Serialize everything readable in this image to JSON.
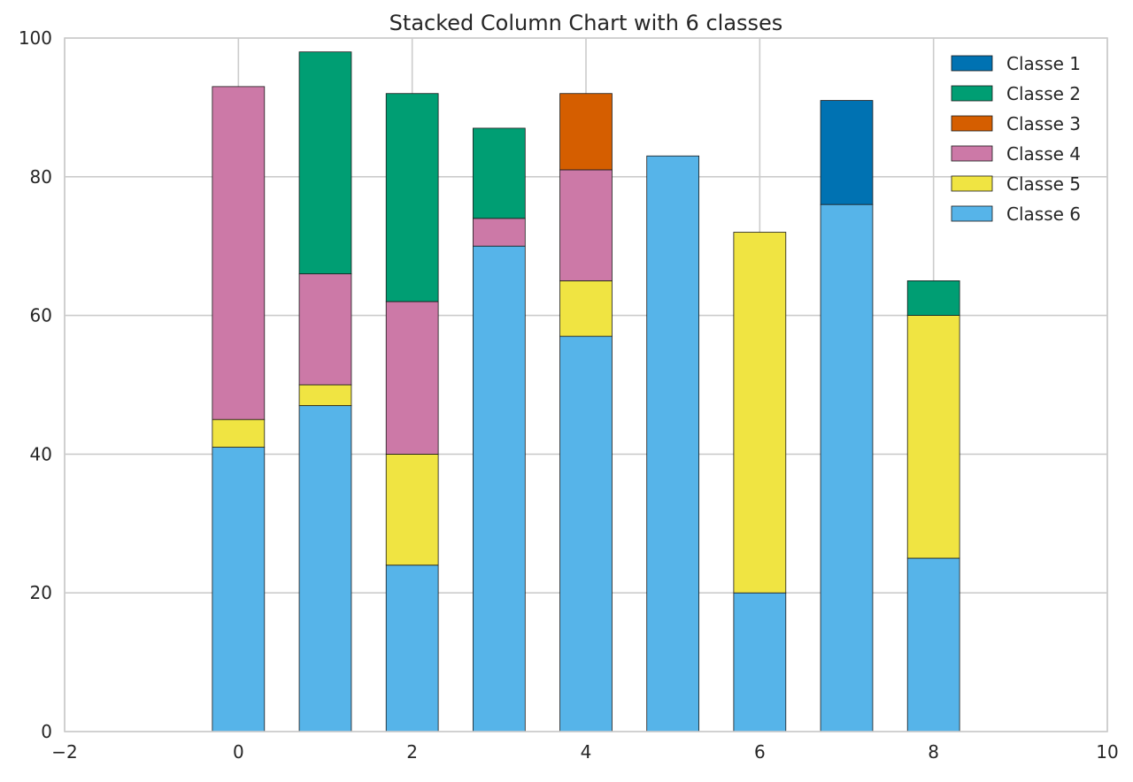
{
  "chart_data": {
    "type": "bar",
    "stacked": true,
    "title": "Stacked Column Chart with 6 classes",
    "xlabel": "",
    "ylabel": "",
    "xlim": [
      -2,
      10
    ],
    "ylim": [
      0,
      100
    ],
    "x_ticks": [
      -2,
      0,
      2,
      4,
      6,
      8,
      10
    ],
    "x_tick_labels": [
      "−2",
      "0",
      "2",
      "4",
      "6",
      "8",
      "10"
    ],
    "y_ticks": [
      0,
      20,
      40,
      60,
      80,
      100
    ],
    "y_tick_labels": [
      "0",
      "20",
      "40",
      "60",
      "80",
      "100"
    ],
    "grid": true,
    "legend_position": "top-right",
    "x": [
      0,
      1,
      2,
      3,
      4,
      5,
      6,
      7,
      8
    ],
    "bar_width": 0.6,
    "stack_order": [
      "Classe 6",
      "Classe 5",
      "Classe 4",
      "Classe 3",
      "Classe 2",
      "Classe 1"
    ],
    "series": [
      {
        "name": "Classe 1",
        "color": "#0072b2",
        "values": [
          0,
          0,
          0,
          0,
          0,
          0,
          0,
          15,
          0
        ]
      },
      {
        "name": "Classe 2",
        "color": "#009e73",
        "values": [
          0,
          32,
          30,
          13,
          0,
          0,
          0,
          0,
          5
        ]
      },
      {
        "name": "Classe 3",
        "color": "#d55e00",
        "values": [
          0,
          0,
          0,
          0,
          11,
          0,
          0,
          0,
          0
        ]
      },
      {
        "name": "Classe 4",
        "color": "#cc79a7",
        "values": [
          48,
          16,
          22,
          4,
          16,
          0,
          0,
          0,
          0
        ]
      },
      {
        "name": "Classe 5",
        "color": "#f0e442",
        "values": [
          4,
          3,
          16,
          0,
          8,
          0,
          52,
          0,
          35
        ]
      },
      {
        "name": "Classe 6",
        "color": "#56b4e9",
        "values": [
          41,
          47,
          24,
          70,
          57,
          83,
          20,
          76,
          25
        ]
      }
    ]
  }
}
